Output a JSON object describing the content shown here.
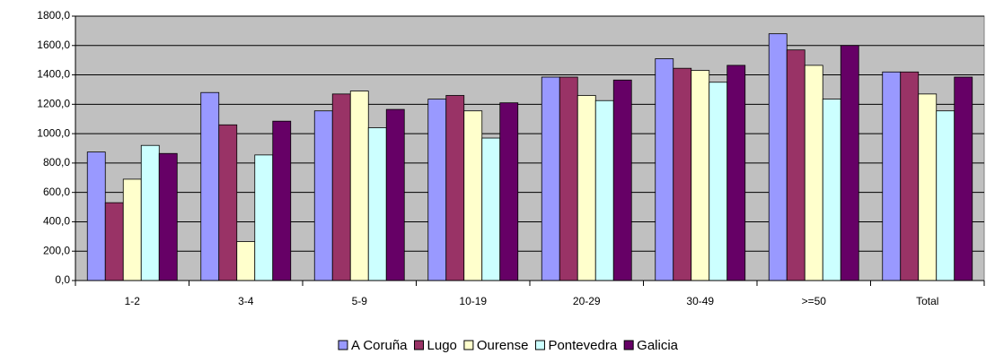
{
  "chart_data": {
    "type": "bar",
    "categories": [
      "1-2",
      "3-4",
      "5-9",
      "10-19",
      "20-29",
      "30-49",
      ">=50",
      "Total"
    ],
    "series": [
      {
        "name": "A Coruña",
        "color": "#9999ff",
        "values": [
          875,
          1280,
          1155,
          1235,
          1385,
          1510,
          1680,
          1420
        ]
      },
      {
        "name": "Lugo",
        "color": "#993366",
        "values": [
          530,
          1060,
          1270,
          1260,
          1385,
          1445,
          1570,
          1420
        ]
      },
      {
        "name": "Ourense",
        "color": "#ffffcc",
        "values": [
          690,
          265,
          1290,
          1155,
          1260,
          1430,
          1465,
          1270
        ]
      },
      {
        "name": "Pontevedra",
        "color": "#ccffff",
        "values": [
          920,
          855,
          1040,
          970,
          1225,
          1350,
          1235,
          1155
        ]
      },
      {
        "name": "Galicia",
        "color": "#660066",
        "values": [
          865,
          1085,
          1165,
          1210,
          1365,
          1465,
          1600,
          1385
        ]
      }
    ],
    "ylim": [
      0,
      1800
    ],
    "yticks": [
      {
        "value": 0,
        "label": "0,0"
      },
      {
        "value": 200,
        "label": "200,0"
      },
      {
        "value": 400,
        "label": "400,0"
      },
      {
        "value": 600,
        "label": "600,0"
      },
      {
        "value": 800,
        "label": "800,0"
      },
      {
        "value": 1000,
        "label": "1000,0"
      },
      {
        "value": 1200,
        "label": "1200,0"
      },
      {
        "value": 1400,
        "label": "1400,0"
      },
      {
        "value": 1600,
        "label": "1600,0"
      },
      {
        "value": 1800,
        "label": "1800,0"
      }
    ],
    "grid": true,
    "legend": "bottom"
  }
}
